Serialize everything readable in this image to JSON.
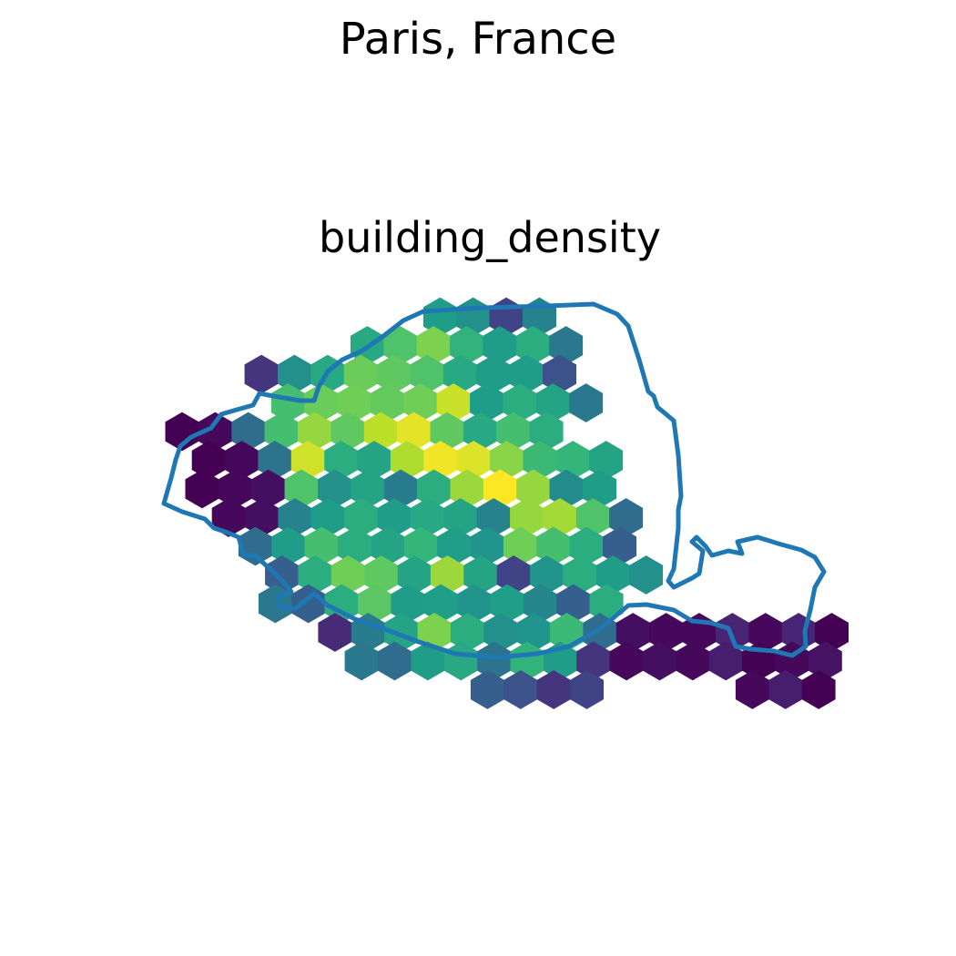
{
  "figure": {
    "suptitle": "Paris, France",
    "title": "building_density"
  },
  "map": {
    "kind": "hexagonal-grid choropleth",
    "colormap": "viridis",
    "colormap_stops": [
      "#440154",
      "#482878",
      "#3e4a89",
      "#31688e",
      "#26828e",
      "#1f9e89",
      "#35b779",
      "#6ece58",
      "#b5de2b",
      "#fde725"
    ],
    "boundary_color": "#1f77b4",
    "value_range": [
      0,
      1
    ],
    "hex_grid": {
      "rows": [
        {
          "row": 0,
          "cells": [
            {
              "col": 9,
              "v": 0.55
            },
            {
              "col": 10,
              "v": 0.5
            },
            {
              "col": 11,
              "v": 0.2
            },
            {
              "col": 12,
              "v": 0.45
            }
          ]
        },
        {
          "row": 1,
          "cells": [
            {
              "col": 6,
              "v": 0.6
            },
            {
              "col": 7,
              "v": 0.72
            },
            {
              "col": 8,
              "v": 0.8
            },
            {
              "col": 9,
              "v": 0.65
            },
            {
              "col": 10,
              "v": 0.55
            },
            {
              "col": 11,
              "v": 0.62
            },
            {
              "col": 12,
              "v": 0.4
            }
          ]
        },
        {
          "row": 2,
          "cells": [
            {
              "col": 3,
              "v": 0.15
            },
            {
              "col": 4,
              "v": 0.5
            },
            {
              "col": 5,
              "v": 0.6
            },
            {
              "col": 6,
              "v": 0.77
            },
            {
              "col": 7,
              "v": 0.75
            },
            {
              "col": 8,
              "v": 0.72
            },
            {
              "col": 9,
              "v": 0.6
            },
            {
              "col": 10,
              "v": 0.55
            },
            {
              "col": 11,
              "v": 0.55
            },
            {
              "col": 12,
              "v": 0.25
            }
          ]
        },
        {
          "row": 3,
          "cells": [
            {
              "col": 3,
              "v": 0.7
            },
            {
              "col": 4,
              "v": 0.77
            },
            {
              "col": 5,
              "v": 0.78
            },
            {
              "col": 6,
              "v": 0.76
            },
            {
              "col": 7,
              "v": 0.78
            },
            {
              "col": 8,
              "v": 0.92
            },
            {
              "col": 9,
              "v": 0.55
            },
            {
              "col": 10,
              "v": 0.62
            },
            {
              "col": 11,
              "v": 0.58
            },
            {
              "col": 12,
              "v": 0.4
            }
          ]
        },
        {
          "row": 4,
          "cells": [
            {
              "col": 0,
              "v": 0.0
            },
            {
              "col": 1,
              "v": 0.02
            },
            {
              "col": 2,
              "v": 0.35
            },
            {
              "col": 3,
              "v": 0.7
            },
            {
              "col": 4,
              "v": 0.84
            },
            {
              "col": 5,
              "v": 0.75
            },
            {
              "col": 6,
              "v": 0.9
            },
            {
              "col": 7,
              "v": 0.96
            },
            {
              "col": 8,
              "v": 0.75
            },
            {
              "col": 9,
              "v": 0.6
            },
            {
              "col": 10,
              "v": 0.7
            },
            {
              "col": 11,
              "v": 0.62
            }
          ]
        },
        {
          "row": 5,
          "cells": [
            {
              "col": 0,
              "v": 0.0
            },
            {
              "col": 1,
              "v": 0.02
            },
            {
              "col": 2,
              "v": 0.38
            },
            {
              "col": 3,
              "v": 0.93
            },
            {
              "col": 4,
              "v": 0.62
            },
            {
              "col": 5,
              "v": 0.58
            },
            {
              "col": 6,
              "v": 0.88
            },
            {
              "col": 7,
              "v": 0.98
            },
            {
              "col": 8,
              "v": 0.95
            },
            {
              "col": 9,
              "v": 0.82
            },
            {
              "col": 10,
              "v": 0.68
            },
            {
              "col": 11,
              "v": 0.66
            },
            {
              "col": 12,
              "v": 0.58
            }
          ]
        },
        {
          "row": 6,
          "cells": [
            {
              "col": 0,
              "v": 0.0
            },
            {
              "col": 1,
              "v": 0.02
            },
            {
              "col": 2,
              "v": 0.04
            },
            {
              "col": 3,
              "v": 0.72
            },
            {
              "col": 4,
              "v": 0.5
            },
            {
              "col": 5,
              "v": 0.58
            },
            {
              "col": 6,
              "v": 0.42
            },
            {
              "col": 7,
              "v": 0.62
            },
            {
              "col": 8,
              "v": 0.85
            },
            {
              "col": 9,
              "v": 1.0
            },
            {
              "col": 10,
              "v": 0.84
            },
            {
              "col": 11,
              "v": 0.48
            },
            {
              "col": 12,
              "v": 0.55
            }
          ]
        },
        {
          "row": 7,
          "cells": [
            {
              "col": 0,
              "v": 0.02
            },
            {
              "col": 1,
              "v": 0.04
            },
            {
              "col": 2,
              "v": 0.45
            },
            {
              "col": 3,
              "v": 0.55
            },
            {
              "col": 4,
              "v": 0.62
            },
            {
              "col": 5,
              "v": 0.55
            },
            {
              "col": 6,
              "v": 0.6
            },
            {
              "col": 7,
              "v": 0.58
            },
            {
              "col": 8,
              "v": 0.45
            },
            {
              "col": 9,
              "v": 0.84
            },
            {
              "col": 10,
              "v": 0.86
            },
            {
              "col": 11,
              "v": 0.72
            },
            {
              "col": 12,
              "v": 0.35
            }
          ]
        },
        {
          "row": 8,
          "cells": [
            {
              "col": 1,
              "v": 0.35
            },
            {
              "col": 2,
              "v": 0.55
            },
            {
              "col": 3,
              "v": 0.7
            },
            {
              "col": 4,
              "v": 0.62
            },
            {
              "col": 5,
              "v": 0.58
            },
            {
              "col": 6,
              "v": 0.66
            },
            {
              "col": 7,
              "v": 0.56
            },
            {
              "col": 8,
              "v": 0.52
            },
            {
              "col": 9,
              "v": 0.78
            },
            {
              "col": 10,
              "v": 0.7
            },
            {
              "col": 11,
              "v": 0.62
            },
            {
              "col": 12,
              "v": 0.3
            }
          ]
        },
        {
          "row": 9,
          "cells": [
            {
              "col": 1,
              "v": 0.3
            },
            {
              "col": 2,
              "v": 0.62
            },
            {
              "col": 3,
              "v": 0.78
            },
            {
              "col": 4,
              "v": 0.75
            },
            {
              "col": 5,
              "v": 0.58
            },
            {
              "col": 6,
              "v": 0.85
            },
            {
              "col": 7,
              "v": 0.58
            },
            {
              "col": 8,
              "v": 0.2
            },
            {
              "col": 9,
              "v": 0.52
            },
            {
              "col": 10,
              "v": 0.62
            },
            {
              "col": 11,
              "v": 0.55
            },
            {
              "col": 12,
              "v": 0.5
            }
          ]
        },
        {
          "row": 10,
          "cells": [
            {
              "col": 1,
              "v": 0.4
            },
            {
              "col": 2,
              "v": 0.3
            },
            {
              "col": 3,
              "v": 0.62
            },
            {
              "col": 4,
              "v": 0.74
            },
            {
              "col": 5,
              "v": 0.55
            },
            {
              "col": 6,
              "v": 0.56
            },
            {
              "col": 7,
              "v": 0.52
            },
            {
              "col": 8,
              "v": 0.56
            },
            {
              "col": 9,
              "v": 0.46
            },
            {
              "col": 10,
              "v": 0.3
            },
            {
              "col": 11,
              "v": 0.62
            }
          ]
        },
        {
          "row": 11,
          "cells": [
            {
              "col": 2,
              "v": 0.12
            },
            {
              "col": 3,
              "v": 0.42
            },
            {
              "col": 4,
              "v": 0.58
            },
            {
              "col": 5,
              "v": 0.8
            },
            {
              "col": 6,
              "v": 0.62
            },
            {
              "col": 7,
              "v": 0.5
            },
            {
              "col": 8,
              "v": 0.52
            },
            {
              "col": 9,
              "v": 0.68
            },
            {
              "col": 10,
              "v": 0.35
            },
            {
              "col": 11,
              "v": 0.04
            },
            {
              "col": 12,
              "v": 0.02
            },
            {
              "col": 13,
              "v": 0.02
            },
            {
              "col": 14,
              "v": 0.1
            },
            {
              "col": 15,
              "v": 0.02
            },
            {
              "col": 16,
              "v": 0.1
            },
            {
              "col": 17,
              "v": 0.0
            }
          ]
        },
        {
          "row": 12,
          "cells": [
            {
              "col": 3,
              "v": 0.4
            },
            {
              "col": 4,
              "v": 0.35
            },
            {
              "col": 5,
              "v": 0.55
            },
            {
              "col": 6,
              "v": 0.6
            },
            {
              "col": 7,
              "v": 0.38
            },
            {
              "col": 8,
              "v": 0.65
            },
            {
              "col": 9,
              "v": 0.55
            },
            {
              "col": 10,
              "v": 0.15
            },
            {
              "col": 11,
              "v": 0.02
            },
            {
              "col": 12,
              "v": 0.04
            },
            {
              "col": 13,
              "v": 0.02
            },
            {
              "col": 14,
              "v": 0.08
            },
            {
              "col": 15,
              "v": 0.0
            },
            {
              "col": 16,
              "v": 0.02
            },
            {
              "col": 17,
              "v": 0.05
            }
          ]
        },
        {
          "row": 13,
          "cells": [
            {
              "col": 6,
              "v": 0.3
            },
            {
              "col": 7,
              "v": 0.25
            },
            {
              "col": 8,
              "v": 0.15
            },
            {
              "col": 9,
              "v": 0.2
            },
            {
              "col": 14,
              "v": 0.02
            },
            {
              "col": 15,
              "v": 0.08
            },
            {
              "col": 16,
              "v": 0.0
            }
          ]
        }
      ]
    }
  }
}
